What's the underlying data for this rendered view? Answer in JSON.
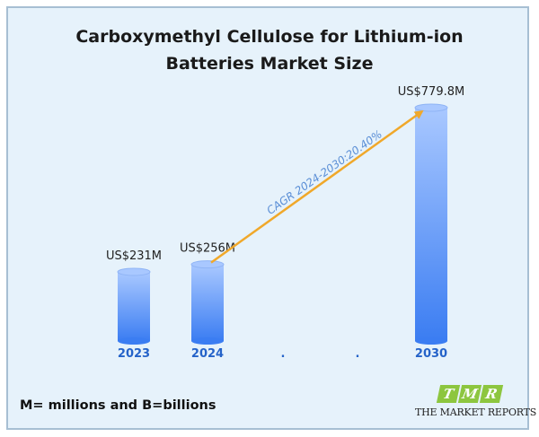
{
  "title_lines": [
    "Carboxymethyl Cellulose for Lithium-ion",
    "Batteries Market Size"
  ],
  "footnote": "M= millions and B=billions",
  "logo": {
    "letters": [
      "T",
      "M",
      "R"
    ],
    "text": "THE MARKET REPORTS"
  },
  "chart_data": {
    "type": "bar",
    "categories": [
      "2023",
      "2024",
      ".",
      ".",
      "2030"
    ],
    "values": [
      231,
      256,
      null,
      null,
      779.8
    ],
    "data_labels": [
      "US$231M",
      "US$256M",
      "",
      "",
      "US$779.8M"
    ],
    "unit": "US$ million",
    "annotation": {
      "text": "CAGR 2024-2030:20.40%",
      "from_category": "2024",
      "to_category": "2030",
      "color": "#f0a82a"
    },
    "bar_color_top": "#a9c8ff",
    "bar_color_bottom": "#3b7df2",
    "label_color": "#2563c9"
  }
}
